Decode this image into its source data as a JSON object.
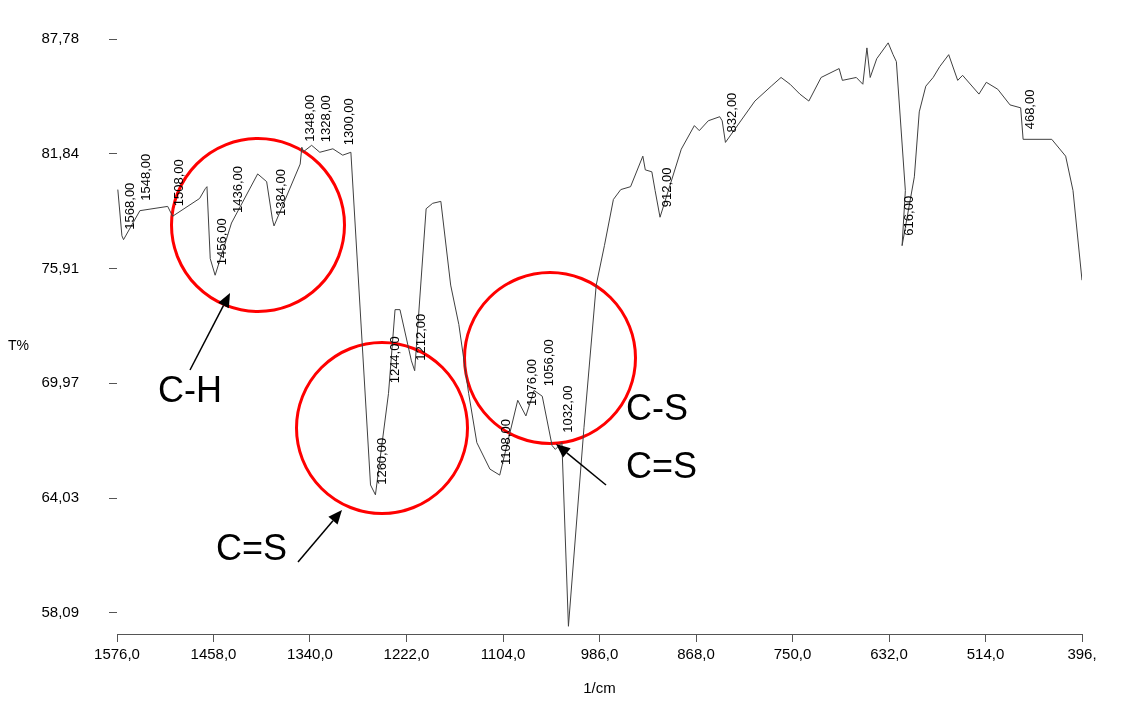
{
  "chart_data": {
    "type": "line",
    "xlabel": "1/cm",
    "ylabel": "T%",
    "xlim": [
      1576,
      396
    ],
    "ylim": [
      57,
      87.78
    ],
    "xticks": [
      {
        "value": 1576,
        "label": "1576,0"
      },
      {
        "value": 1458,
        "label": "1458,0"
      },
      {
        "value": 1340,
        "label": "1340,0"
      },
      {
        "value": 1222,
        "label": "1222,0"
      },
      {
        "value": 1104,
        "label": "1104,0"
      },
      {
        "value": 986,
        "label": "986,0"
      },
      {
        "value": 868,
        "label": "868,0"
      },
      {
        "value": 750,
        "label": "750,0"
      },
      {
        "value": 632,
        "label": "632,0"
      },
      {
        "value": 514,
        "label": "514,0"
      },
      {
        "value": 396,
        "label": "396,"
      }
    ],
    "yticks": [
      {
        "value": 58.09,
        "label": "58,09"
      },
      {
        "value": 64.03,
        "label": "64,03"
      },
      {
        "value": 69.97,
        "label": "69,97"
      },
      {
        "value": 75.91,
        "label": "75,91"
      },
      {
        "value": 81.84,
        "label": "81,84"
      },
      {
        "value": 87.78,
        "label": "87,78"
      }
    ],
    "grid": false,
    "legend": false,
    "marker": "none",
    "line_style": "solid",
    "series": [
      {
        "color": "#404040",
        "x": [
          1575,
          1570,
          1568,
          1548,
          1514,
          1508,
          1475,
          1468,
          1466,
          1462,
          1456,
          1436,
          1404,
          1393,
          1386,
          1384,
          1352,
          1350,
          1348,
          1338,
          1328,
          1312,
          1300,
          1290,
          1266,
          1260,
          1244,
          1236,
          1230,
          1216,
          1212,
          1198,
          1190,
          1180,
          1168,
          1158,
          1146,
          1136,
          1120,
          1108,
          1086,
          1076,
          1066,
          1056,
          1044,
          1040,
          1032,
          1024,
          1005,
          990,
          980,
          969,
          960,
          948,
          933,
          930,
          922,
          918,
          912,
          886,
          870,
          864,
          853,
          839,
          836,
          832,
          796,
          776,
          764,
          753,
          741,
          730,
          715,
          693,
          689,
          672,
          664,
          659,
          655,
          647,
          633,
          627,
          623,
          612,
          616,
          601,
          595,
          587,
          578,
          570,
          559,
          548,
          542,
          522,
          513,
          499,
          484,
          471,
          468,
          433,
          416,
          407,
          396
        ],
        "values": [
          79.99,
          77.6,
          77.4,
          78.9,
          79.12,
          78.61,
          79.53,
          80.04,
          80.14,
          76.42,
          75.56,
          78.26,
          80.8,
          80.4,
          78.46,
          78.11,
          81.31,
          82.18,
          81.95,
          82.28,
          81.92,
          82.1,
          81.77,
          81.92,
          64.71,
          64.2,
          69.45,
          73.78,
          73.78,
          71.13,
          70.62,
          79.0,
          79.28,
          79.38,
          75.05,
          73.01,
          69.45,
          66.9,
          65.53,
          65.22,
          69.09,
          68.28,
          69.6,
          69.3,
          66.75,
          66.55,
          66.9,
          57.4,
          67.67,
          75.05,
          77.09,
          79.48,
          79.99,
          80.14,
          81.72,
          81.01,
          80.91,
          79.94,
          78.56,
          82.08,
          83.3,
          83.04,
          83.55,
          83.76,
          83.55,
          82.43,
          84.57,
          85.34,
          85.79,
          85.44,
          84.93,
          84.57,
          85.79,
          86.25,
          85.64,
          85.79,
          85.44,
          87.32,
          85.79,
          86.76,
          87.58,
          86.97,
          86.61,
          79.94,
          77.09,
          80.65,
          84.01,
          85.34,
          85.79,
          86.35,
          86.97,
          85.64,
          85.9,
          84.93,
          85.54,
          85.18,
          84.37,
          84.22,
          82.59,
          82.59,
          81.72,
          79.94,
          75.3
        ]
      }
    ],
    "annotations": [
      {
        "text": "1568,00",
        "x": 1568,
        "y": 77.4
      },
      {
        "text": "1548,00",
        "x": 1548,
        "y": 78.9
      },
      {
        "text": "1508,00",
        "x": 1508,
        "y": 78.61
      },
      {
        "text": "1456,00",
        "x": 1456,
        "y": 75.56
      },
      {
        "text": "1436,00",
        "x": 1436,
        "y": 78.26
      },
      {
        "text": "1384,00",
        "x": 1384,
        "y": 78.11
      },
      {
        "text": "1348,00",
        "x": 1348,
        "y": 81.95
      },
      {
        "text": "1328,00",
        "x": 1328,
        "y": 81.92
      },
      {
        "text": "1300,00",
        "x": 1300,
        "y": 81.77
      },
      {
        "text": "1260,00",
        "x": 1260,
        "y": 64.2
      },
      {
        "text": "1244,00",
        "x": 1244,
        "y": 69.45
      },
      {
        "text": "1212,00",
        "x": 1212,
        "y": 70.62
      },
      {
        "text": "1108,00",
        "x": 1108,
        "y": 65.22
      },
      {
        "text": "1076,00",
        "x": 1076,
        "y": 68.28
      },
      {
        "text": "1056,00",
        "x": 1056,
        "y": 69.3
      },
      {
        "text": "1032,00",
        "x": 1032,
        "y": 66.9
      },
      {
        "text": "912,00",
        "x": 912,
        "y": 78.56
      },
      {
        "text": "832,00",
        "x": 832,
        "y": 82.43
      },
      {
        "text": "616,00",
        "x": 616,
        "y": 77.09
      },
      {
        "text": "468,00",
        "x": 468,
        "y": 82.59
      },
      "C-H",
      "C=S",
      "C-S",
      "C=S"
    ]
  }
}
